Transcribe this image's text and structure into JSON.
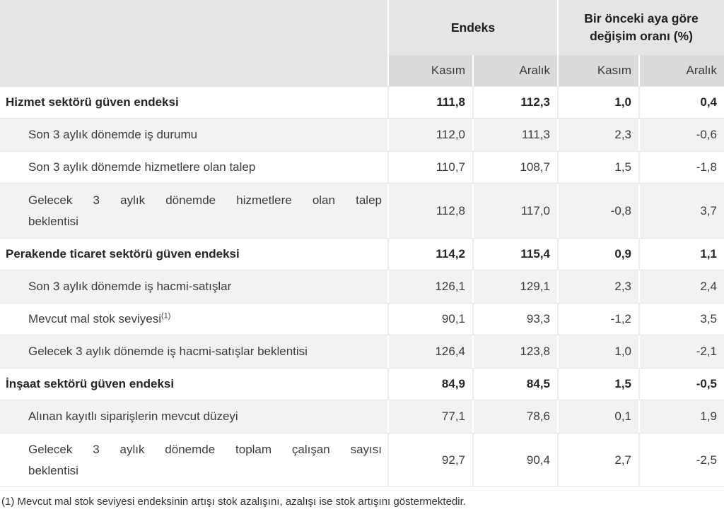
{
  "header": {
    "group1": "Endeks",
    "group2": "Bir önceki aya göre değişim oranı (%)",
    "columns": [
      "Kasım",
      "Aralık",
      "Kasım",
      "Aralık"
    ]
  },
  "rows": [
    {
      "label": "Hizmet sektörü güven endeksi",
      "bold": true,
      "values": [
        "111,8",
        "112,3",
        "1,0",
        "0,4"
      ]
    },
    {
      "label": "Son 3 aylık dönemde iş durumu",
      "values": [
        "112,0",
        "111,3",
        "2,3",
        "-0,6"
      ]
    },
    {
      "label": "Son 3 aylık dönemde hizmetlere olan talep",
      "values": [
        "110,7",
        "108,7",
        "1,5",
        "-1,8"
      ]
    },
    {
      "label_lines": [
        "Gelecek 3 aylık dönemde hizmetlere olan talep",
        "beklentisi"
      ],
      "values": [
        "112,8",
        "117,0",
        "-0,8",
        "3,7"
      ]
    },
    {
      "label": "Perakende ticaret sektörü güven endeksi",
      "bold": true,
      "values": [
        "114,2",
        "115,4",
        "0,9",
        "1,1"
      ]
    },
    {
      "label": "Son 3 aylık dönemde iş hacmi-satışlar",
      "values": [
        "126,1",
        "129,1",
        "2,3",
        "2,4"
      ]
    },
    {
      "label": "Mevcut mal stok seviyesi",
      "superscript": "(1)",
      "values": [
        "90,1",
        "93,3",
        "-1,2",
        "3,5"
      ]
    },
    {
      "label": "Gelecek 3 aylık dönemde iş hacmi-satışlar beklentisi",
      "values": [
        "126,4",
        "123,8",
        "1,0",
        "-2,1"
      ]
    },
    {
      "label": "İnşaat sektörü güven endeksi",
      "bold": true,
      "values": [
        "84,9",
        "84,5",
        "1,5",
        "-0,5"
      ]
    },
    {
      "label": "Alınan kayıtlı siparişlerin mevcut düzeyi",
      "values": [
        "77,1",
        "78,6",
        "0,1",
        "1,9"
      ]
    },
    {
      "label_lines": [
        "Gelecek 3 aylık dönemde toplam çalışan sayısı",
        "beklentisi"
      ],
      "values": [
        "92,7",
        "90,4",
        "2,7",
        "-2,5"
      ]
    }
  ],
  "footnote": "(1) Mevcut mal stok seviyesi endeksinin artışı stok azalışını, azalışı ise stok artışını göstermektedir.",
  "colors": {
    "header_top_bg": "#e5e5e5",
    "header_sub_bg": "#dadada",
    "row_alt_bg": "#f2f2f2",
    "row_white_border": "#e7e7e7",
    "bold_text": "#262626",
    "body_text": "#3c3c3c"
  },
  "chart_data": {
    "type": "table",
    "column_groups": [
      "Endeks",
      "Bir önceki aya göre değişim oranı (%)"
    ],
    "columns": [
      "Endeks Kasım",
      "Endeks Aralık",
      "Değişim Kasım (%)",
      "Değişim Aralık (%)"
    ],
    "rows": [
      [
        "Hizmet sektörü güven endeksi",
        111.8,
        112.3,
        1.0,
        0.4
      ],
      [
        "Son 3 aylık dönemde iş durumu",
        112.0,
        111.3,
        2.3,
        -0.6
      ],
      [
        "Son 3 aylık dönemde hizmetlere olan talep",
        110.7,
        108.7,
        1.5,
        -1.8
      ],
      [
        "Gelecek 3 aylık dönemde hizmetlere olan talep beklentisi",
        112.8,
        117.0,
        -0.8,
        3.7
      ],
      [
        "Perakende ticaret sektörü güven endeksi",
        114.2,
        115.4,
        0.9,
        1.1
      ],
      [
        "Son 3 aylık dönemde iş hacmi-satışlar",
        126.1,
        129.1,
        2.3,
        2.4
      ],
      [
        "Mevcut mal stok seviyesi (1)",
        90.1,
        93.3,
        -1.2,
        3.5
      ],
      [
        "Gelecek 3 aylık dönemde iş hacmi-satışlar beklentisi",
        126.4,
        123.8,
        1.0,
        -2.1
      ],
      [
        "İnşaat sektörü güven endeksi",
        84.9,
        84.5,
        1.5,
        -0.5
      ],
      [
        "Alınan kayıtlı siparişlerin mevcut düzeyi",
        77.1,
        78.6,
        0.1,
        1.9
      ],
      [
        "Gelecek 3 aylık dönemde toplam çalışan sayısı beklentisi",
        92.7,
        90.4,
        2.7,
        -2.5
      ]
    ]
  }
}
